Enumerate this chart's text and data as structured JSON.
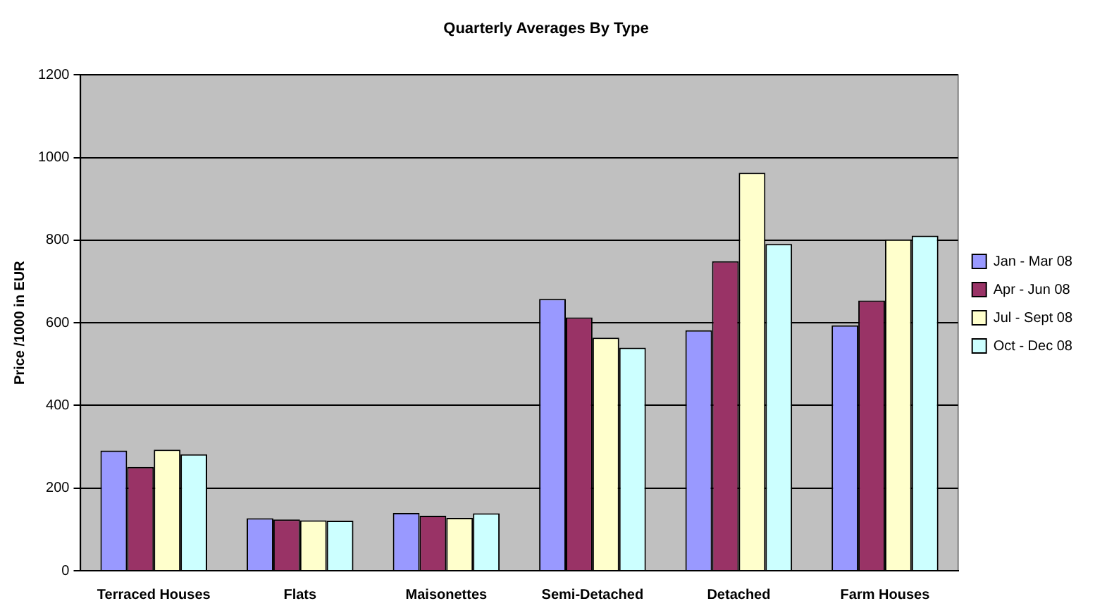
{
  "chart_data": {
    "type": "bar",
    "title": "Quarterly Averages By Type",
    "ylabel": "Price /1000 in EUR",
    "categories": [
      "Terraced Houses",
      "Flats",
      "Maisonettes",
      "Semi-Detached",
      "Detached",
      "Farm Houses"
    ],
    "series": [
      {
        "name": "Jan - Mar 08",
        "color": "#9999ff",
        "values": [
          291,
          127,
          140,
          658,
          582,
          594
        ]
      },
      {
        "name": "Apr - Jun 08",
        "color": "#993366",
        "values": [
          251,
          124,
          133,
          613,
          749,
          654
        ]
      },
      {
        "name": "Jul - Sept 08",
        "color": "#ffffcc",
        "values": [
          293,
          122,
          128,
          564,
          963,
          802
        ]
      },
      {
        "name": "Oct - Dec 08",
        "color": "#ccffff",
        "values": [
          282,
          121,
          139,
          540,
          791,
          811
        ]
      }
    ],
    "ylim": [
      0,
      1200
    ],
    "yticks": [
      0,
      200,
      400,
      600,
      800,
      1000,
      1200
    ],
    "grid": "y",
    "legend": "right"
  }
}
